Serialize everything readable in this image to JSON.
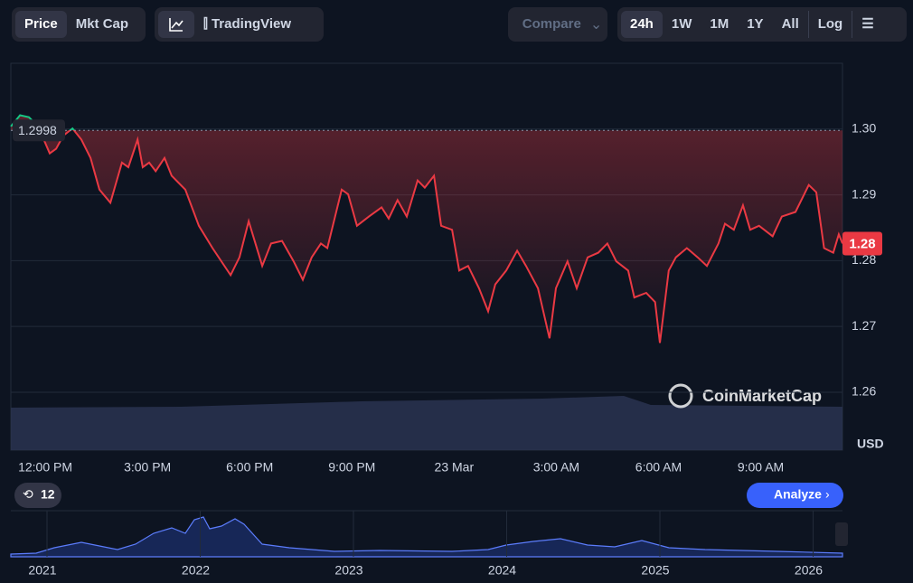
{
  "toolbar": {
    "left": [
      "Price",
      "Mkt Cap"
    ],
    "view": "TradingView",
    "compare": "Compare",
    "ranges": [
      "24h",
      "1W",
      "1M",
      "1Y",
      "All"
    ],
    "log": "Log"
  },
  "chart_data": {
    "type": "line",
    "color": "#ea3943",
    "up_color": "#16c784",
    "x": [
      -1.01,
      -0.74,
      -0.48,
      -0.21,
      0.13,
      0.32,
      0.53,
      0.8,
      1.06,
      1.33,
      1.59,
      1.91,
      2.25,
      2.44,
      2.71,
      2.86,
      3.05,
      3.24,
      3.5,
      3.71,
      4.11,
      4.51,
      4.91,
      5.44,
      5.7,
      5.97,
      6.37,
      6.63,
      6.95,
      7.29,
      7.56,
      7.82,
      8.09,
      8.28,
      8.7,
      8.89,
      9.15,
      9.5,
      9.87,
      10.08,
      10.34,
      10.61,
      10.93,
      11.14,
      11.41,
      11.62,
      11.94,
      12.15,
      12.41,
      12.73,
      13.0,
      13.21,
      13.53,
      13.85,
      14.11,
      14.46,
      14.8,
      14.99,
      15.33,
      15.6,
      15.92,
      16.23,
      16.5,
      16.76,
      17.11,
      17.29,
      17.64,
      17.9,
      18.04,
      18.3,
      18.51,
      18.83,
      19.15,
      19.42,
      19.76,
      19.95,
      20.21,
      20.48,
      20.69,
      20.95,
      21.35,
      21.62,
      22.02,
      22.41,
      22.63,
      22.86,
      23.13,
      23.29,
      23.4
    ],
    "values": [
      1.3004,
      1.3021,
      1.3018,
      1.3004,
      1.2963,
      1.297,
      1.299,
      1.3001,
      1.2984,
      1.2956,
      1.2908,
      1.2888,
      1.2949,
      1.2942,
      1.2984,
      1.2942,
      1.2949,
      1.2936,
      1.2956,
      1.2929,
      1.2908,
      1.2853,
      1.2819,
      1.2778,
      1.2805,
      1.286,
      1.2792,
      1.2826,
      1.283,
      1.2799,
      1.2771,
      1.2805,
      1.2826,
      1.2819,
      1.2908,
      1.2901,
      1.2853,
      1.2867,
      1.2881,
      1.2864,
      1.2892,
      1.2867,
      1.2922,
      1.2911,
      1.2929,
      1.2853,
      1.2847,
      1.2785,
      1.2792,
      1.2758,
      1.2723,
      1.2764,
      1.2785,
      1.2815,
      1.2792,
      1.2758,
      1.2682,
      1.2758,
      1.2799,
      1.2758,
      1.2805,
      1.2812,
      1.2826,
      1.2799,
      1.2785,
      1.2744,
      1.2751,
      1.2737,
      1.2675,
      1.2785,
      1.2805,
      1.2819,
      1.2805,
      1.2792,
      1.2826,
      1.2856,
      1.2847,
      1.2884,
      1.2847,
      1.2853,
      1.2837,
      1.2867,
      1.2874,
      1.2915,
      1.2904,
      1.2819,
      1.2812,
      1.284,
      1.2826
    ],
    "xlim": [
      -1.01,
      23.4
    ],
    "xticks": [
      {
        "value": 0,
        "label": "12:00 PM"
      },
      {
        "value": 3,
        "label": "3:00 PM"
      },
      {
        "value": 6,
        "label": "6:00 PM"
      },
      {
        "value": 9,
        "label": "9:00 PM"
      },
      {
        "value": 12,
        "label": "23 Mar"
      },
      {
        "value": 15,
        "label": "3:00 AM"
      },
      {
        "value": 18,
        "label": "6:00 AM"
      },
      {
        "value": 21,
        "label": "9:00 AM"
      }
    ],
    "ylim": [
      1.2512,
      1.31
    ],
    "yticks": [
      {
        "value": 1.3,
        "label": "1.30"
      },
      1.29,
      1.28,
      1.27,
      1.26
    ],
    "y_axis_label": "USD",
    "reference": 1.2998,
    "current_price": {
      "value": 1.2826,
      "label": "1.28"
    },
    "grid": true
  },
  "watermark": "CoinMarketCap",
  "history_badge": "12",
  "analyze": "Analyze",
  "overview": {
    "years": [
      "2021",
      "2022",
      "2023",
      "2024",
      "2025",
      "2026"
    ]
  }
}
